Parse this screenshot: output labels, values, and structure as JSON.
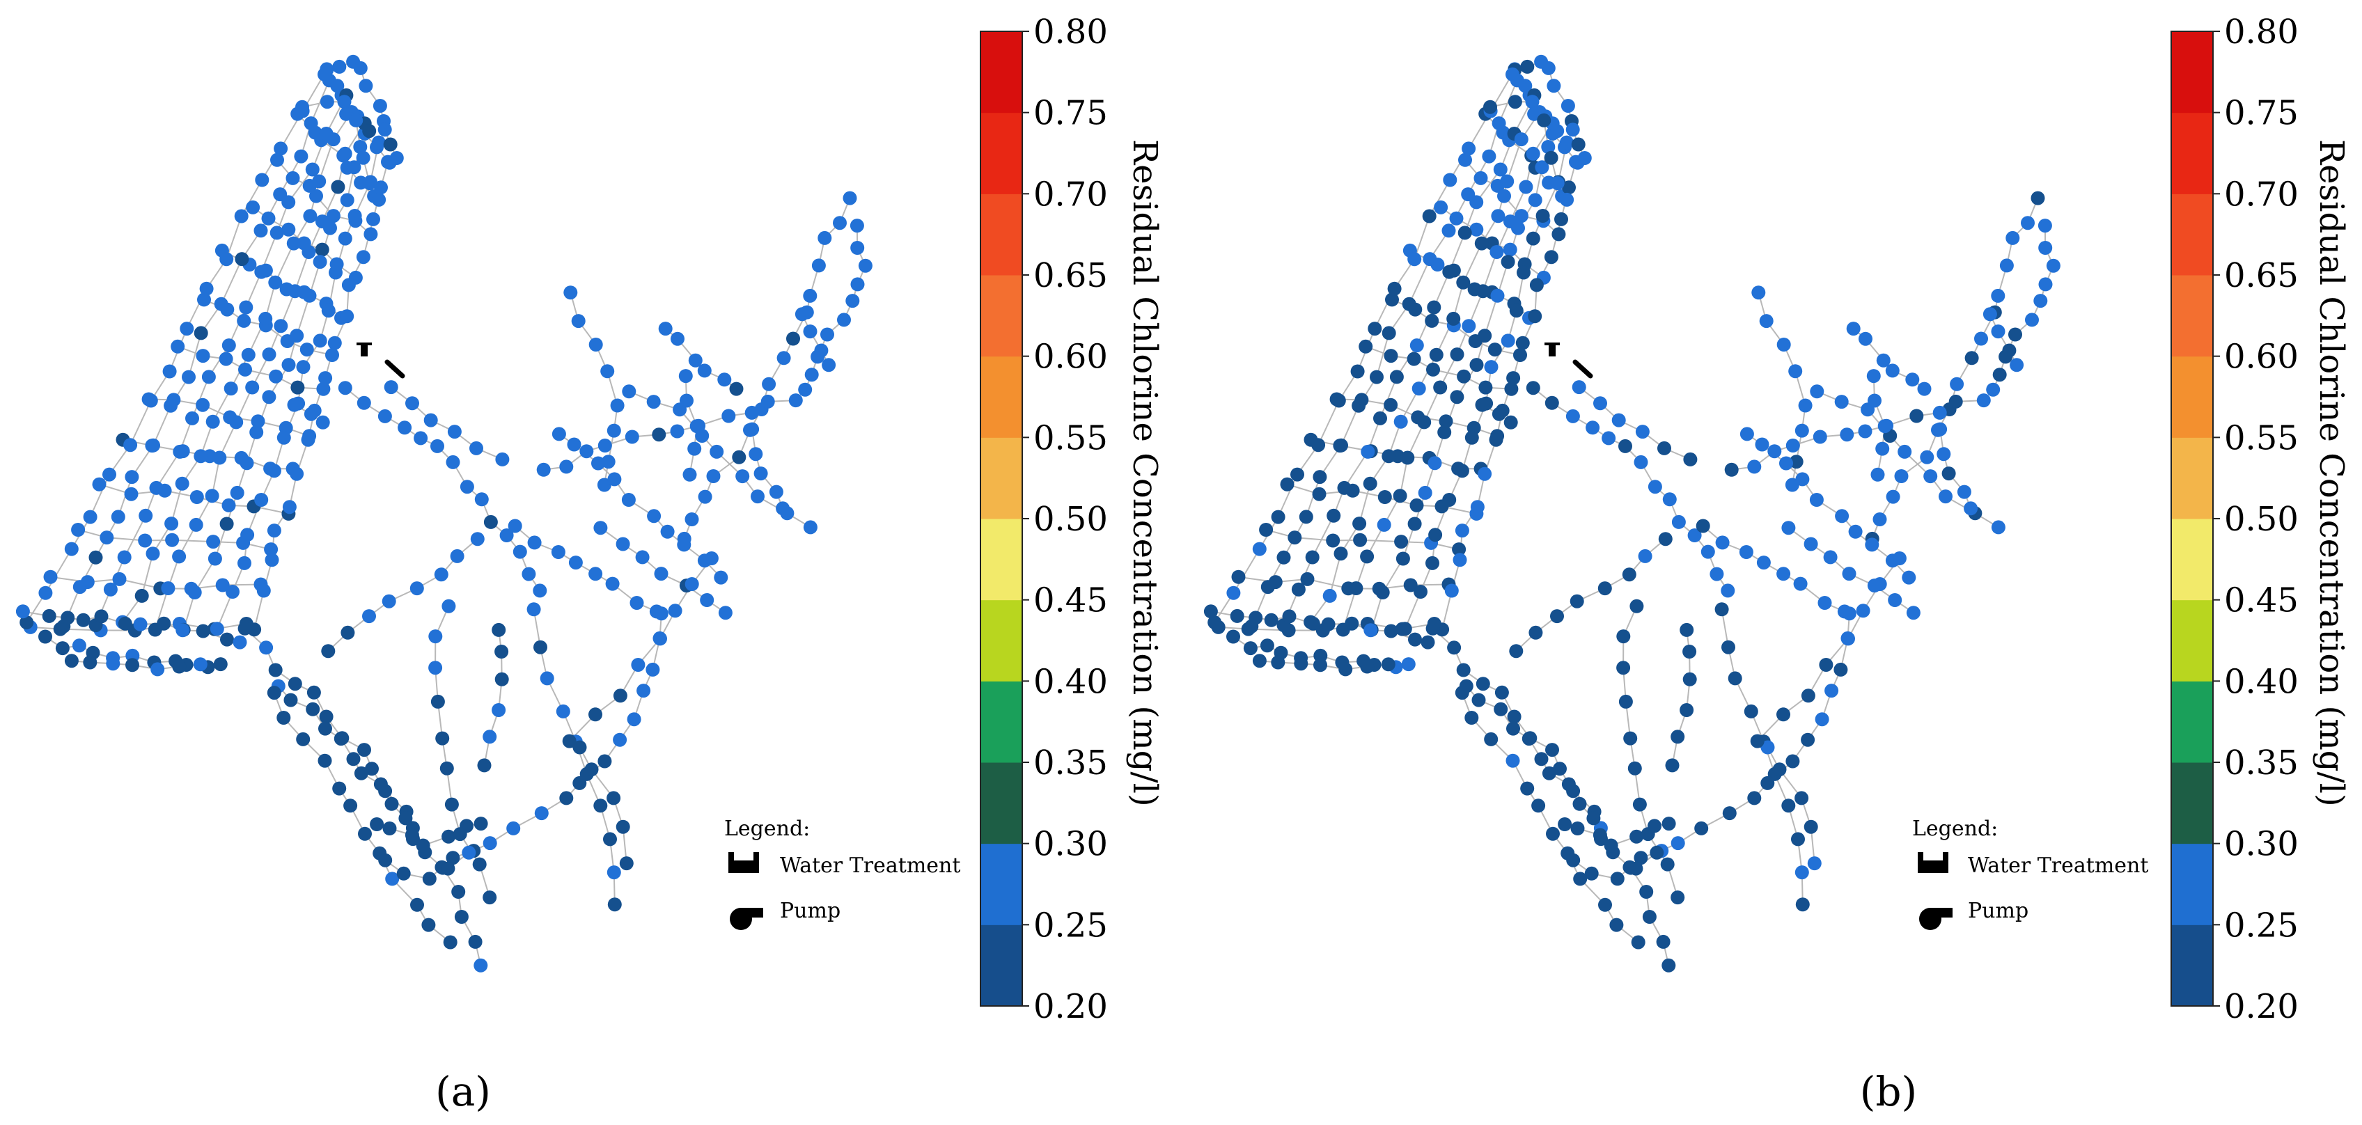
{
  "panels": [
    {
      "id": "a",
      "caption": "(a)",
      "legend": {
        "title": "Legend:",
        "items": [
          {
            "label": "Water Treatment",
            "icon": "water-treatment-icon"
          },
          {
            "label": "Pump",
            "icon": "pump-icon"
          }
        ]
      },
      "node_style": "lighter",
      "colorbar": {
        "label": "Residual Chlorine Concentration (mg/l)",
        "ticks": [
          "0.20",
          "0.25",
          "0.30",
          "0.35",
          "0.40",
          "0.45",
          "0.50",
          "0.55",
          "0.60",
          "0.65",
          "0.70",
          "0.75",
          "0.80"
        ]
      }
    },
    {
      "id": "b",
      "caption": "(b)",
      "legend": {
        "title": "Legend:",
        "items": [
          {
            "label": "Water Treatment",
            "icon": "water-treatment-icon"
          },
          {
            "label": "Pump",
            "icon": "pump-icon"
          }
        ]
      },
      "node_style": "darker",
      "colorbar": {
        "label": "Residual Chlorine Concentration (mg/l)",
        "ticks": [
          "0.20",
          "0.25",
          "0.30",
          "0.35",
          "0.40",
          "0.45",
          "0.50",
          "0.55",
          "0.60",
          "0.65",
          "0.70",
          "0.75",
          "0.80"
        ]
      }
    }
  ],
  "colorbar_colors": [
    "#164e8c",
    "#1f6fd1",
    "#1d5e45",
    "#1aa05a",
    "#b8d61f",
    "#f2ea6a",
    "#f3b54a",
    "#f3902f",
    "#f36f30",
    "#f04b22",
    "#e82714",
    "#d80f0d",
    "#c1070c"
  ],
  "node_colors": {
    "light": "#2271d6",
    "dark": "#15508e"
  }
}
